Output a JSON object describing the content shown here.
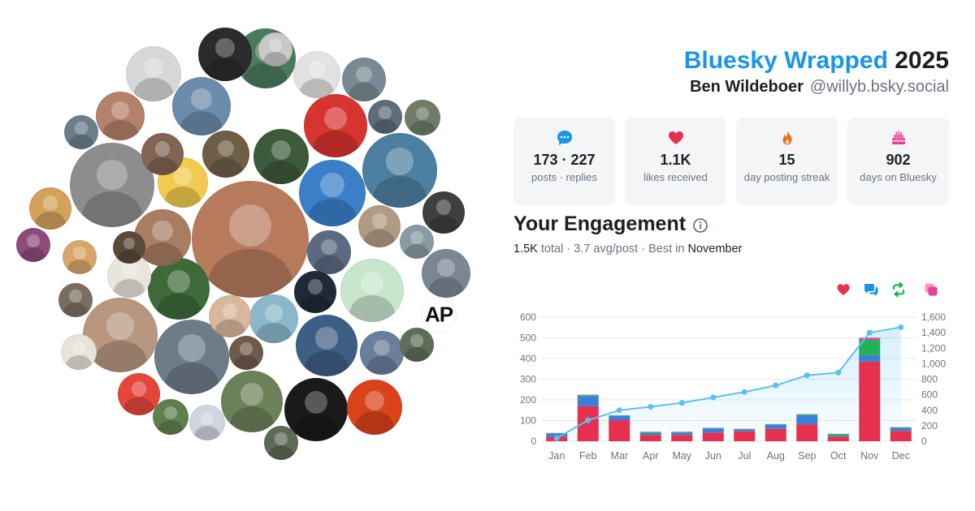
{
  "header": {
    "title_accent": "Bluesky Wrapped",
    "title_year": "2025",
    "user_name": "Ben Wildeboer",
    "user_handle": "@willyb.bsky.social"
  },
  "avatar_logo_text": "AP",
  "stats": [
    {
      "icon": "chat-bubble-icon",
      "color": "#1a95e8",
      "value": "173 · 227",
      "label": "posts · replies"
    },
    {
      "icon": "heart-icon",
      "color": "#e5304f",
      "value": "1.1K",
      "label": "likes received"
    },
    {
      "icon": "flame-icon",
      "color": "#f26b1d",
      "value": "15",
      "label": "day posting streak"
    },
    {
      "icon": "cake-icon",
      "color": "#e64098",
      "value": "902",
      "label": "days on Bluesky"
    }
  ],
  "engagement": {
    "title": "Your Engagement",
    "total_value": "1.5K",
    "total_label": "total",
    "avg_value": "3.7",
    "avg_label": "avg/post",
    "best_label": "Best in",
    "best_month": "November"
  },
  "legend": [
    {
      "icon": "heart-icon",
      "color": "#e5304f"
    },
    {
      "icon": "chat-bubbles-icon",
      "color": "#1a95e8"
    },
    {
      "icon": "repost-icon",
      "color": "#1fb257"
    },
    {
      "icon": "quote-icon",
      "color": "#e64098"
    }
  ],
  "chart_data": {
    "type": "bar",
    "stacked": true,
    "categories": [
      "Jan",
      "Feb",
      "Mar",
      "Apr",
      "May",
      "Jun",
      "Jul",
      "Aug",
      "Sep",
      "Oct",
      "Nov",
      "Dec"
    ],
    "series": [
      {
        "color": "#e5304f",
        "values": [
          22,
          170,
          102,
          30,
          30,
          42,
          48,
          60,
          82,
          22,
          385,
          50
        ]
      },
      {
        "color": "#3a7fdb",
        "values": [
          15,
          47,
          20,
          10,
          12,
          20,
          8,
          20,
          43,
          5,
          30,
          15
        ]
      },
      {
        "color": "#1fb257",
        "values": [
          2,
          6,
          3,
          5,
          3,
          2,
          3,
          2,
          5,
          8,
          75,
          2
        ]
      },
      {
        "color": "#e64098",
        "values": [
          1,
          2,
          1,
          1,
          1,
          1,
          1,
          1,
          1,
          1,
          10,
          1
        ]
      }
    ],
    "cumulative": {
      "color": "#5bc0f0",
      "axis": "right",
      "values": [
        40,
        270,
        400,
        445,
        495,
        565,
        635,
        720,
        850,
        885,
        1400,
        1470
      ]
    },
    "ylim": [
      0,
      600
    ],
    "yticks": [
      "0",
      "100",
      "200",
      "300",
      "400",
      "500",
      "600"
    ],
    "y2lim": [
      0,
      1600
    ],
    "y2ticks": [
      "0",
      "200",
      "400",
      "600",
      "800",
      "1,000",
      "1,200",
      "1,400",
      "1,600"
    ],
    "grid": true
  }
}
